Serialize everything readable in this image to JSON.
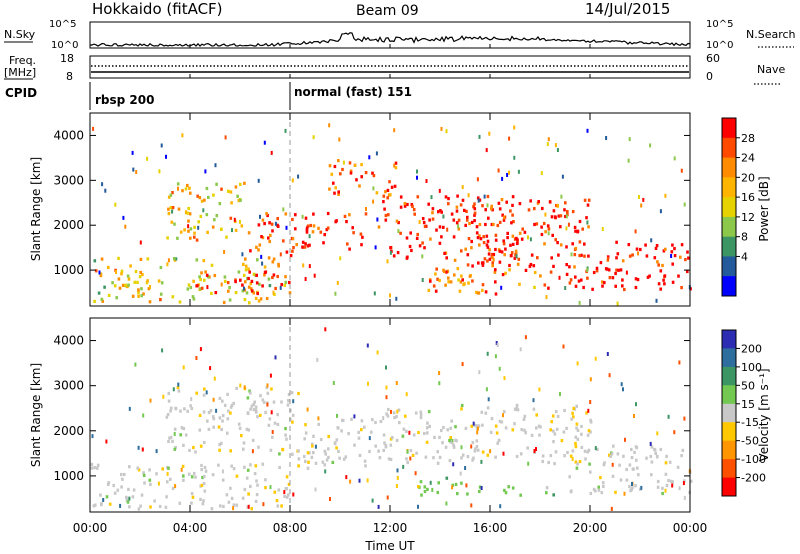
{
  "header": {
    "radar": "Hokkaido (fitACF)",
    "beam": "Beam 09",
    "date": "14/Jul/2015"
  },
  "strip": {
    "nsky_label": "N.Sky",
    "nsky_ticks": [
      "10^5",
      "10^0"
    ],
    "nsearch_label": "N.Search",
    "nsearch_ticks": [
      "10^5",
      "10^0"
    ],
    "freq_label_1": "Freq.",
    "freq_label_2": "[MHz]",
    "freq_ticks": [
      "18",
      "8"
    ],
    "nave_label": "Nave",
    "nave_ticks": [
      "60",
      "0"
    ],
    "cpid_label": "CPID",
    "cpid_entries": [
      {
        "label": "rbsp 200",
        "start_hour": 0
      },
      {
        "label": "normal (fast) 151",
        "start_hour": 8
      }
    ]
  },
  "chart_data": [
    {
      "type": "heatmap",
      "name": "Power",
      "ylabel": "Slant Range [km]",
      "xlabel": "",
      "xlim": [
        0,
        24
      ],
      "ylim": [
        200,
        4500
      ],
      "yticks": [
        1000,
        2000,
        3000,
        4000
      ],
      "colorbar_label": "Power [dB]",
      "colorbar_ticks": [
        "28",
        "24",
        "20",
        "16",
        "12",
        "8",
        "4"
      ],
      "colorbar_colors": [
        "#ff0000",
        "#ff4a00",
        "#ff8c00",
        "#ffb400",
        "#e6d200",
        "#8cc84a",
        "#3c9664",
        "#235a9b",
        "#0000ff"
      ],
      "features": [
        {
          "t": [
            0.0,
            7.8
          ],
          "range": [
            300,
            1300
          ],
          "level": 0.55
        },
        {
          "t": [
            4.0,
            8.0
          ],
          "range": [
            500,
            1000
          ],
          "level": 0.95
        },
        {
          "t": [
            3.0,
            6.2
          ],
          "range": [
            1700,
            3000
          ],
          "level": 0.6
        },
        {
          "t": [
            6.3,
            8.3
          ],
          "range": [
            1200,
            2300
          ],
          "level": 0.9
        },
        {
          "t": [
            8.0,
            11.0
          ],
          "range": [
            1500,
            2300
          ],
          "level": 0.95
        },
        {
          "t": [
            9.5,
            12.2
          ],
          "range": [
            2700,
            3500
          ],
          "level": 0.85
        },
        {
          "t": [
            11.5,
            17.0
          ],
          "range": [
            1300,
            2700
          ],
          "level": 0.95
        },
        {
          "t": [
            14.5,
            20.0
          ],
          "range": [
            1100,
            2600
          ],
          "level": 0.95
        },
        {
          "t": [
            13.0,
            18.5
          ],
          "range": [
            500,
            1100
          ],
          "level": 0.8
        },
        {
          "t": [
            19.0,
            24.0
          ],
          "range": [
            600,
            1700
          ],
          "level": 0.97
        }
      ]
    },
    {
      "type": "heatmap",
      "name": "Velocity",
      "ylabel": "Slant Range [km]",
      "xlabel": "Time UT",
      "xlim": [
        0,
        24
      ],
      "ylim": [
        200,
        4500
      ],
      "yticks": [
        1000,
        2000,
        3000,
        4000
      ],
      "xticks": [
        "00:00",
        "04:00",
        "08:00",
        "12:00",
        "16:00",
        "20:00",
        "00:00"
      ],
      "colorbar_label": "Velocity [m s⁻¹]",
      "colorbar_ticks": [
        "200",
        "100",
        "50",
        "15",
        "-15",
        "-50",
        "-100",
        "-200"
      ],
      "colorbar_colors": [
        "#2d2db4",
        "#2e6e9e",
        "#3c9664",
        "#72c850",
        "#c8c8c8",
        "#ffc800",
        "#ff9600",
        "#ff5000",
        "#ff0000"
      ],
      "features": [
        {
          "t": [
            0.0,
            8.0
          ],
          "range": [
            300,
            1300
          ],
          "level": "-15..15"
        },
        {
          "t": [
            3.0,
            8.3
          ],
          "range": [
            1500,
            3000
          ],
          "level": "-15..15"
        },
        {
          "t": [
            8.0,
            11.5
          ],
          "range": [
            1200,
            2300
          ],
          "level": "-15..15"
        },
        {
          "t": [
            11.5,
            20.0
          ],
          "range": [
            1300,
            2600
          ],
          "level": "-15..15"
        },
        {
          "t": [
            13.0,
            15.8
          ],
          "range": [
            600,
            1000
          ],
          "level": "50..100"
        },
        {
          "t": [
            16.5,
            19.0
          ],
          "range": [
            600,
            800
          ],
          "level": "15..50"
        },
        {
          "t": [
            19.0,
            24.0
          ],
          "range": [
            600,
            1700
          ],
          "level": "-15..15"
        }
      ]
    }
  ]
}
